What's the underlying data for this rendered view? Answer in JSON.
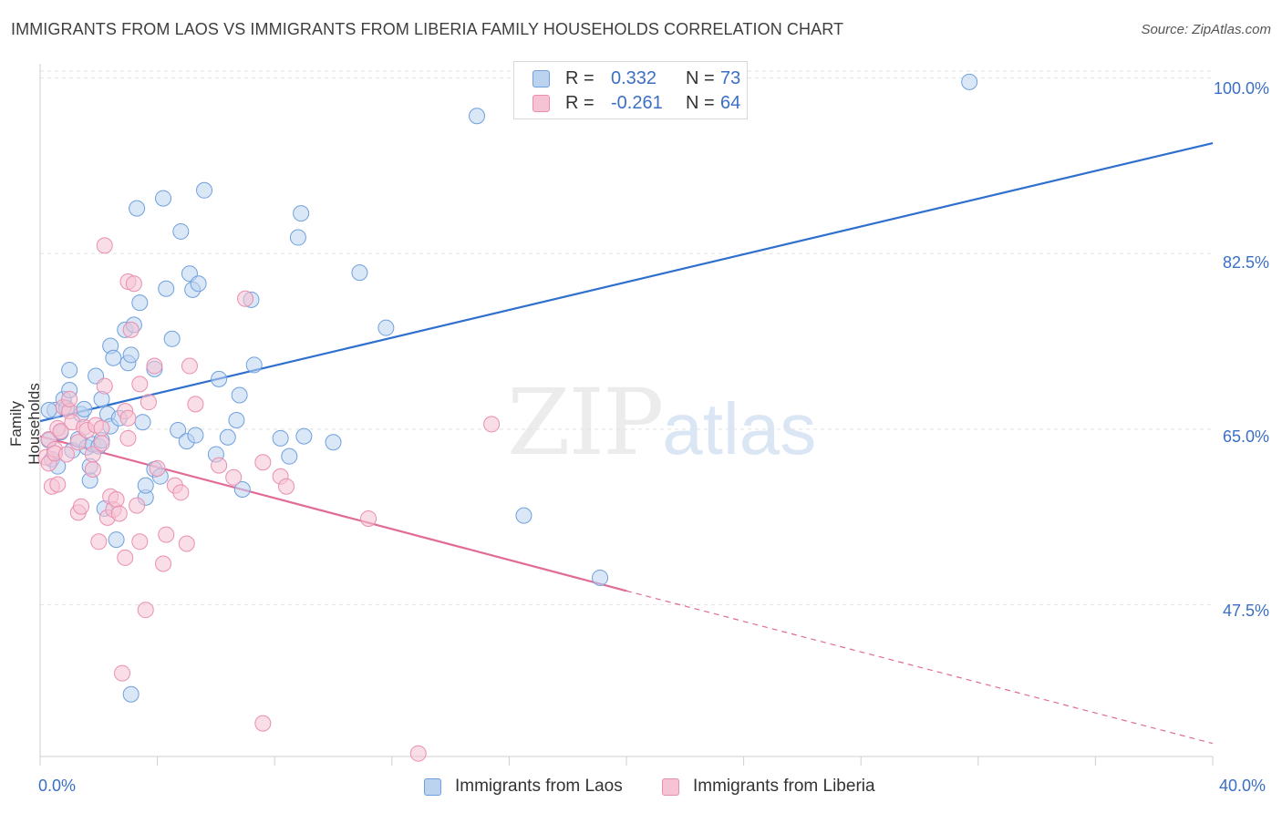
{
  "title": "IMMIGRANTS FROM LAOS VS IMMIGRANTS FROM LIBERIA FAMILY HOUSEHOLDS CORRELATION CHART",
  "source": "Source: ZipAtlas.com",
  "watermark": {
    "zip": "ZIP",
    "atlas": "atlas"
  },
  "colors": {
    "laos": "#6fa0dd",
    "laos_fill": "#bcd3f0",
    "laos_line": "#2f6fce",
    "liberia": "#ea8eae",
    "liberia_fill": "#f6c3d4",
    "liberia_line": "#e06c97"
  },
  "legend": {
    "laos": {
      "r_label": "R =",
      "r_value": "0.332",
      "n_label": "N =",
      "n_value": "73"
    },
    "liberia": {
      "r_label": "R =",
      "r_value": "-0.261",
      "n_label": "N =",
      "n_value": "64"
    }
  },
  "bottom_legend": {
    "laos": "Immigrants from Laos",
    "liberia": "Immigrants from Liberia"
  },
  "chart_data": {
    "type": "scatter",
    "title": "IMMIGRANTS FROM LAOS VS IMMIGRANTS FROM LIBERIA FAMILY HOUSEHOLDS CORRELATION CHART",
    "xlabel": "",
    "ylabel": "Family Households",
    "xlim": [
      0,
      40
    ],
    "ylim": [
      32.4,
      101.4
    ],
    "x_tick_labels": [
      "0.0%",
      "40.0%"
    ],
    "y_ticks": [
      47.5,
      65.0,
      82.5,
      100.0
    ],
    "y_tick_labels": [
      "47.5%",
      "65.0%",
      "82.5%",
      "100.0%"
    ],
    "grid": true,
    "series": [
      {
        "name": "Immigrants from Laos",
        "color": "#6fa0dd",
        "trend": {
          "x": [
            0,
            40
          ],
          "y": [
            65.8,
            93.5
          ],
          "dashed_from": null
        },
        "points": [
          [
            0.3,
            63.9
          ],
          [
            0.4,
            62.0
          ],
          [
            0.5,
            66.9
          ],
          [
            0.6,
            61.3
          ],
          [
            0.7,
            64.7
          ],
          [
            0.8,
            68.0
          ],
          [
            0.9,
            67.1
          ],
          [
            1.0,
            68.9
          ],
          [
            1.0,
            70.9
          ],
          [
            1.1,
            62.9
          ],
          [
            1.3,
            64.0
          ],
          [
            1.4,
            66.5
          ],
          [
            1.5,
            67.0
          ],
          [
            1.6,
            63.2
          ],
          [
            1.7,
            59.9
          ],
          [
            1.7,
            61.3
          ],
          [
            1.8,
            63.5
          ],
          [
            1.9,
            70.3
          ],
          [
            2.0,
            63.3
          ],
          [
            2.1,
            63.9
          ],
          [
            2.1,
            68.0
          ],
          [
            2.2,
            57.1
          ],
          [
            2.3,
            66.5
          ],
          [
            2.4,
            65.3
          ],
          [
            2.4,
            73.3
          ],
          [
            2.5,
            72.1
          ],
          [
            2.6,
            54.0
          ],
          [
            2.7,
            66.1
          ],
          [
            2.9,
            74.9
          ],
          [
            3.0,
            71.6
          ],
          [
            3.1,
            72.4
          ],
          [
            3.1,
            38.6
          ],
          [
            3.2,
            75.4
          ],
          [
            3.3,
            87.0
          ],
          [
            3.4,
            77.6
          ],
          [
            3.5,
            65.7
          ],
          [
            3.6,
            58.2
          ],
          [
            3.6,
            59.4
          ],
          [
            3.9,
            61.0
          ],
          [
            3.9,
            71.0
          ],
          [
            4.1,
            60.3
          ],
          [
            4.2,
            88.0
          ],
          [
            4.3,
            79.0
          ],
          [
            4.5,
            74.0
          ],
          [
            4.7,
            64.9
          ],
          [
            4.8,
            84.7
          ],
          [
            5.0,
            63.8
          ],
          [
            5.1,
            80.5
          ],
          [
            5.2,
            78.9
          ],
          [
            5.3,
            64.4
          ],
          [
            5.4,
            79.5
          ],
          [
            5.6,
            88.8
          ],
          [
            6.0,
            62.5
          ],
          [
            6.1,
            70.0
          ],
          [
            6.4,
            64.2
          ],
          [
            6.7,
            65.9
          ],
          [
            6.8,
            68.4
          ],
          [
            6.9,
            59.0
          ],
          [
            7.2,
            77.9
          ],
          [
            7.3,
            71.4
          ],
          [
            8.2,
            64.1
          ],
          [
            8.5,
            62.3
          ],
          [
            8.8,
            84.1
          ],
          [
            8.9,
            86.5
          ],
          [
            9.0,
            64.3
          ],
          [
            10.0,
            63.7
          ],
          [
            10.9,
            80.6
          ],
          [
            11.8,
            75.1
          ],
          [
            14.9,
            96.2
          ],
          [
            16.5,
            56.4
          ],
          [
            19.1,
            50.2
          ],
          [
            31.7,
            99.6
          ],
          [
            0.3,
            66.9
          ]
        ]
      },
      {
        "name": "Immigrants from Liberia",
        "color": "#ea8eae",
        "trend": {
          "x": [
            0,
            20
          ],
          "y": [
            64.3,
            48.9
          ],
          "dashed_x": [
            20,
            40
          ],
          "dashed_y": [
            48.9,
            33.7
          ]
        },
        "points": [
          [
            0.2,
            62.2
          ],
          [
            0.3,
            64.0
          ],
          [
            0.3,
            61.6
          ],
          [
            0.4,
            59.3
          ],
          [
            0.5,
            63.0
          ],
          [
            0.5,
            62.6
          ],
          [
            0.6,
            65.1
          ],
          [
            0.7,
            64.8
          ],
          [
            0.8,
            67.2
          ],
          [
            0.9,
            62.5
          ],
          [
            1.0,
            66.8
          ],
          [
            1.1,
            65.7
          ],
          [
            1.3,
            63.7
          ],
          [
            1.3,
            56.7
          ],
          [
            1.4,
            57.3
          ],
          [
            1.5,
            65.2
          ],
          [
            1.6,
            64.9
          ],
          [
            1.8,
            61.0
          ],
          [
            1.8,
            62.5
          ],
          [
            1.9,
            65.4
          ],
          [
            2.0,
            53.8
          ],
          [
            2.1,
            65.1
          ],
          [
            2.1,
            63.6
          ],
          [
            2.2,
            69.3
          ],
          [
            2.2,
            83.3
          ],
          [
            2.3,
            56.2
          ],
          [
            2.4,
            58.3
          ],
          [
            2.5,
            57.0
          ],
          [
            2.6,
            58.0
          ],
          [
            2.7,
            56.6
          ],
          [
            2.8,
            40.7
          ],
          [
            2.9,
            52.2
          ],
          [
            2.9,
            66.8
          ],
          [
            3.0,
            66.1
          ],
          [
            3.0,
            64.1
          ],
          [
            3.0,
            79.7
          ],
          [
            3.1,
            74.9
          ],
          [
            3.2,
            79.5
          ],
          [
            3.3,
            57.4
          ],
          [
            3.4,
            53.8
          ],
          [
            3.4,
            69.5
          ],
          [
            3.6,
            47.0
          ],
          [
            3.7,
            67.7
          ],
          [
            3.9,
            71.3
          ],
          [
            4.0,
            61.1
          ],
          [
            4.2,
            51.6
          ],
          [
            4.3,
            54.5
          ],
          [
            4.6,
            59.4
          ],
          [
            4.8,
            58.7
          ],
          [
            5.0,
            53.6
          ],
          [
            5.1,
            71.3
          ],
          [
            5.3,
            67.5
          ],
          [
            6.1,
            61.4
          ],
          [
            6.6,
            60.2
          ],
          [
            7.0,
            78.0
          ],
          [
            7.6,
            61.7
          ],
          [
            7.6,
            35.7
          ],
          [
            8.2,
            60.3
          ],
          [
            8.4,
            59.3
          ],
          [
            11.2,
            56.1
          ],
          [
            12.9,
            32.7
          ],
          [
            15.4,
            65.5
          ],
          [
            1.0,
            68.0
          ],
          [
            0.6,
            59.5
          ]
        ]
      }
    ]
  },
  "axes": {
    "y_axis_title": "Family Households",
    "y_labels": [
      "100.0%",
      "82.5%",
      "65.0%",
      "47.5%"
    ],
    "x_left": "0.0%",
    "x_right": "40.0%"
  }
}
